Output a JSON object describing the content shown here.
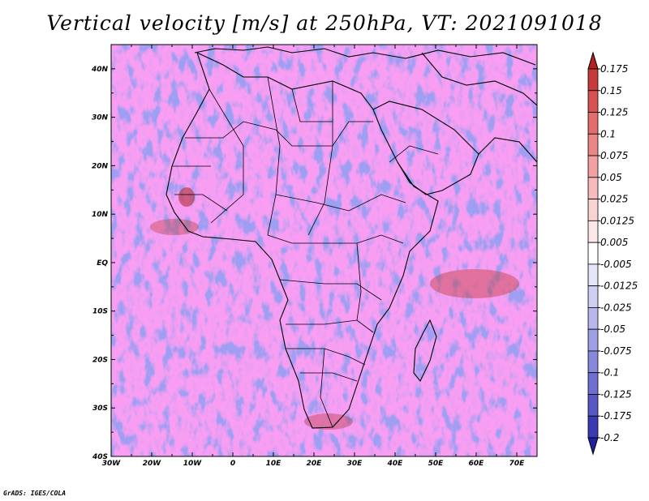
{
  "title": "Vertical velocity [m/s] at 250hPa, VT: 2021091018",
  "credit": "GrADS: IGES/COLA",
  "map": {
    "lon_labels": [
      "30W",
      "20W",
      "10W",
      "0",
      "10E",
      "20E",
      "30E",
      "40E",
      "50E",
      "60E",
      "70E"
    ],
    "lat_labels": [
      "40N",
      "30N",
      "20N",
      "10N",
      "EQ",
      "10S",
      "20S",
      "30S",
      "40S"
    ],
    "lon_range": [
      -30,
      75
    ],
    "lat_range": [
      -40,
      45
    ]
  },
  "colorbar": {
    "labels": [
      "0.175",
      "0.15",
      "0.125",
      "0.1",
      "0.075",
      "0.05",
      "0.025",
      "0.0125",
      "0.005",
      "-0.005",
      "-0.0125",
      "-0.025",
      "-0.05",
      "-0.075",
      "-0.1",
      "-0.125",
      "-0.175",
      "-0.2"
    ],
    "colors": [
      "#b22222",
      "#c83a3a",
      "#d85252",
      "#e46c6c",
      "#ec8686",
      "#f2a0a0",
      "#f6baba",
      "#f9d2d2",
      "#fce8e8",
      "#ffffff",
      "#e6e6fa",
      "#cfcff4",
      "#b7b7ee",
      "#9f9fe6",
      "#8787dc",
      "#6f6fd2",
      "#5757c6",
      "#3a3ab4",
      "#2020a0"
    ]
  }
}
